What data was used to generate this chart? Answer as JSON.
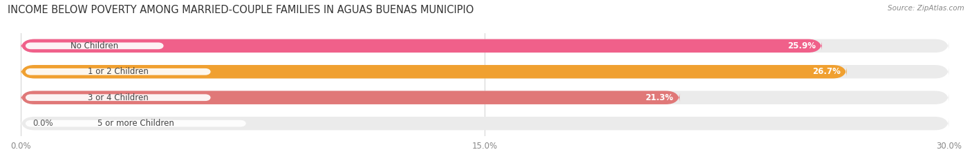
{
  "title": "INCOME BELOW POVERTY AMONG MARRIED-COUPLE FAMILIES IN AGUAS BUENAS MUNICIPIO",
  "source": "Source: ZipAtlas.com",
  "categories": [
    "No Children",
    "1 or 2 Children",
    "3 or 4 Children",
    "5 or more Children"
  ],
  "values": [
    25.9,
    26.7,
    21.3,
    0.0
  ],
  "bar_colors": [
    "#f0608a",
    "#f0a030",
    "#e07878",
    "#a8c0d8"
  ],
  "bar_bg_color": "#ebebeb",
  "xlim": [
    0,
    30.0
  ],
  "xticks": [
    0.0,
    15.0,
    30.0
  ],
  "xticklabels": [
    "0.0%",
    "15.0%",
    "30.0%"
  ],
  "label_fontsize": 8.5,
  "title_fontsize": 10.5,
  "value_label_color_white": "#ffffff",
  "value_label_color_dark": "#555555",
  "background_color": "#ffffff",
  "bar_height": 0.52,
  "figsize": [
    14.06,
    2.33
  ],
  "dpi": 100
}
